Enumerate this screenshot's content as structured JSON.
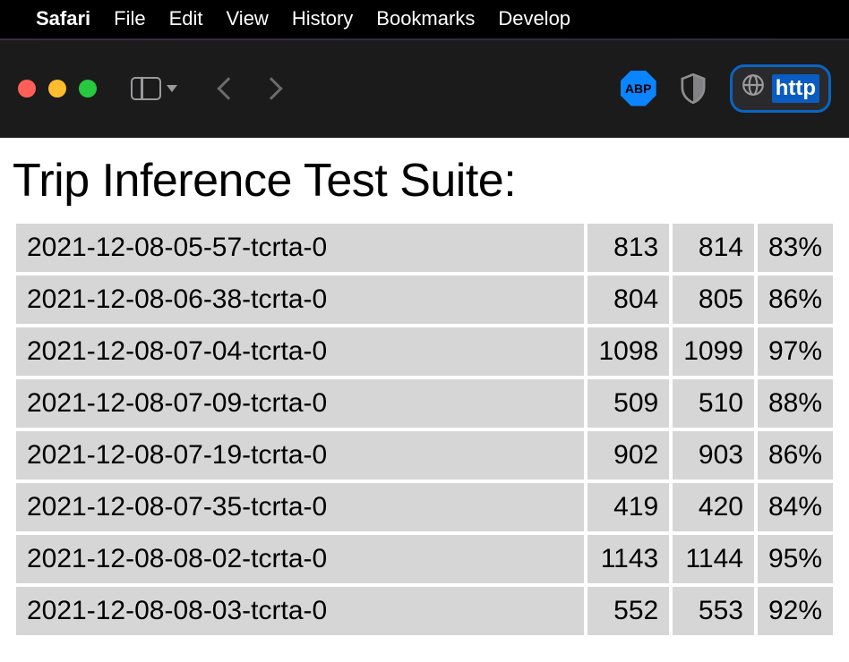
{
  "menubar": {
    "app_name": "Safari",
    "items": [
      "File",
      "Edit",
      "View",
      "History",
      "Bookmarks",
      "Develop"
    ]
  },
  "toolbar": {
    "abp_label": "ABP",
    "url_fragment": "http"
  },
  "page": {
    "title": "Trip Inference Test Suite:",
    "rows": [
      {
        "name": "2021-12-08-05-57-tcrta-0",
        "a": "813",
        "b": "814",
        "pct": "83%"
      },
      {
        "name": "2021-12-08-06-38-tcrta-0",
        "a": "804",
        "b": "805",
        "pct": "86%"
      },
      {
        "name": "2021-12-08-07-04-tcrta-0",
        "a": "1098",
        "b": "1099",
        "pct": "97%"
      },
      {
        "name": "2021-12-08-07-09-tcrta-0",
        "a": "509",
        "b": "510",
        "pct": "88%"
      },
      {
        "name": "2021-12-08-07-19-tcrta-0",
        "a": "902",
        "b": "903",
        "pct": "86%"
      },
      {
        "name": "2021-12-08-07-35-tcrta-0",
        "a": "419",
        "b": "420",
        "pct": "84%"
      },
      {
        "name": "2021-12-08-08-02-tcrta-0",
        "a": "1143",
        "b": "1144",
        "pct": "95%"
      },
      {
        "name": "2021-12-08-08-03-tcrta-0",
        "a": "552",
        "b": "553",
        "pct": "92%"
      }
    ],
    "colors": {
      "cell_bg": "#d6d6d6",
      "page_bg": "#ffffff",
      "text": "#000000"
    }
  }
}
